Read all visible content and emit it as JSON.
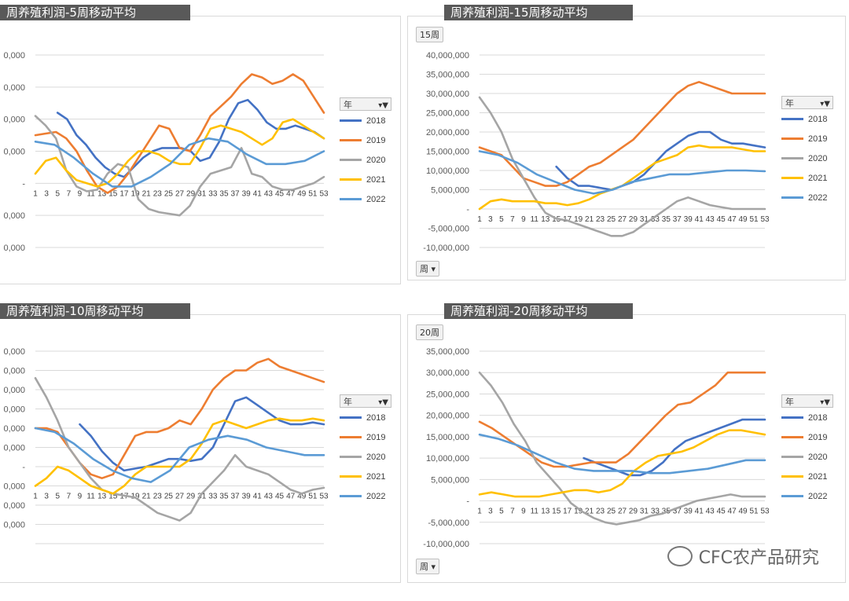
{
  "watermark": "CFC农产品研究",
  "legend_header": "年",
  "years": [
    "2018",
    "2019",
    "2020",
    "2021",
    "2022"
  ],
  "colors": {
    "2018": "#4472c4",
    "2019": "#ed7d31",
    "2020": "#a5a5a5",
    "2021": "#ffc000",
    "2022": "#5b9bd5"
  },
  "x_labels": [
    "1",
    "3",
    "5",
    "7",
    "9",
    "11",
    "13",
    "15",
    "17",
    "19",
    "21",
    "23",
    "25",
    "27",
    "29",
    "31",
    "33",
    "35",
    "37",
    "39",
    "41",
    "43",
    "45",
    "47",
    "49",
    "51",
    "53"
  ],
  "panels": [
    {
      "id": "p5",
      "title": "周养殖利润-5周移动平均",
      "badge": "",
      "field_button": "",
      "y_labels": [
        "0,000",
        "0,000",
        "0,000",
        "0,000",
        "-",
        "0,000",
        "0,000"
      ],
      "chart_data": {
        "type": "line",
        "ylim": [
          -20000000,
          40000000
        ],
        "yticks": [
          40000000,
          30000000,
          20000000,
          10000000,
          0,
          -10000000,
          -20000000
        ],
        "series": [
          {
            "name": "2018",
            "start": 5,
            "values": [
              22000000,
              20000000,
              15000000,
              12000000,
              8000000,
              5000000,
              3000000,
              2000000,
              5000000,
              8000000,
              10000000,
              11000000,
              11000000,
              11000000,
              10000000,
              7000000,
              8000000,
              13000000,
              20000000,
              25000000,
              26000000,
              23000000,
              19000000,
              17000000,
              17000000,
              18000000,
              17000000,
              16000000,
              14000000
            ]
          },
          {
            "name": "2019",
            "start": 1,
            "values": [
              15000000,
              15500000,
              16000000,
              14000000,
              10000000,
              4000000,
              -1000000,
              -3000000,
              -1000000,
              3000000,
              8000000,
              13000000,
              18000000,
              17000000,
              11000000,
              10000000,
              15000000,
              21000000,
              24000000,
              27000000,
              31000000,
              34000000,
              33000000,
              31000000,
              32000000,
              34000000,
              32000000,
              27000000,
              22000000
            ]
          },
          {
            "name": "2020",
            "start": 1,
            "values": [
              21000000,
              18000000,
              14000000,
              4000000,
              -1000000,
              -2500000,
              -2000000,
              3000000,
              6000000,
              5000000,
              -5000000,
              -8000000,
              -9000000,
              -9500000,
              -10000000,
              -7000000,
              -1000000,
              3000000,
              4000000,
              5000000,
              11000000,
              3000000,
              2000000,
              -1000000,
              -2000000,
              -2000000,
              -1000000,
              0,
              2000000
            ]
          },
          {
            "name": "2021",
            "start": 1,
            "values": [
              3000000,
              7000000,
              8000000,
              4000000,
              1000000,
              0,
              -1000000,
              0,
              3000000,
              7000000,
              10000000,
              10000000,
              9000000,
              7000000,
              6000000,
              6000000,
              11000000,
              17000000,
              18000000,
              17000000,
              16000000,
              14000000,
              12000000,
              14000000,
              19000000,
              20000000,
              18000000,
              16000000,
              14000000
            ]
          },
          {
            "name": "2022",
            "start": 1,
            "values": [
              13000000,
              12000000,
              8000000,
              3000000,
              -1000000,
              -1000000,
              2000000,
              6000000,
              12000000,
              14000000,
              13000000,
              9000000,
              6000000,
              6000000,
              7000000,
              10000000
            ]
          }
        ]
      }
    },
    {
      "id": "p15",
      "title": "周养殖利润-15周移动平均",
      "badge": "15周",
      "field_button": "周",
      "y_labels": [
        "40,000,000",
        "35,000,000",
        "30,000,000",
        "25,000,000",
        "20,000,000",
        "15,000,000",
        "10,000,000",
        "5,000,000",
        "-",
        "-5,000,000",
        "-10,000,000"
      ],
      "chart_data": {
        "type": "line",
        "ylim": [
          -10000000,
          40000000
        ],
        "yticks": [
          40000000,
          35000000,
          30000000,
          25000000,
          20000000,
          15000000,
          10000000,
          5000000,
          0,
          -5000000,
          -10000000
        ],
        "series": [
          {
            "name": "2018",
            "start": 15,
            "values": [
              11000000,
              8000000,
              6000000,
              6000000,
              5500000,
              5000000,
              6000000,
              7000000,
              9000000,
              12000000,
              15000000,
              17000000,
              19000000,
              20000000,
              20000000,
              18000000,
              17000000,
              17000000,
              16500000,
              16000000
            ]
          },
          {
            "name": "2019",
            "start": 1,
            "values": [
              16000000,
              15000000,
              14000000,
              11000000,
              8000000,
              7000000,
              6000000,
              6000000,
              7000000,
              9000000,
              11000000,
              12000000,
              14000000,
              16000000,
              18000000,
              21000000,
              24000000,
              27000000,
              30000000,
              32000000,
              33000000,
              32000000,
              31000000,
              30000000,
              30000000,
              30000000,
              30000000
            ]
          },
          {
            "name": "2020",
            "start": 1,
            "values": [
              29000000,
              25000000,
              20000000,
              13000000,
              8000000,
              3000000,
              -1000000,
              -2500000,
              -3000000,
              -4000000,
              -5000000,
              -6000000,
              -7000000,
              -7000000,
              -6000000,
              -4000000,
              -2000000,
              0,
              2000000,
              3000000,
              2000000,
              1000000,
              500000,
              0,
              0,
              0,
              0
            ]
          },
          {
            "name": "2021",
            "start": 1,
            "values": [
              0,
              2000000,
              2500000,
              2000000,
              2000000,
              2000000,
              1500000,
              1500000,
              1000000,
              1500000,
              2500000,
              4000000,
              5000000,
              6000000,
              8000000,
              10000000,
              12000000,
              13000000,
              14000000,
              16000000,
              16500000,
              16000000,
              16000000,
              16000000,
              15500000,
              15000000,
              15000000
            ]
          },
          {
            "name": "2022",
            "start": 1,
            "values": [
              15000000,
              14000000,
              12000000,
              9000000,
              7000000,
              5000000,
              4000000,
              5000000,
              7000000,
              8000000,
              9000000,
              9000000,
              9500000,
              10000000,
              10000000,
              9800000
            ]
          }
        ]
      }
    },
    {
      "id": "p10",
      "title": "周养殖利润-10周移动平均",
      "badge": "",
      "field_button": "",
      "y_labels": [
        "0,000",
        "0,000",
        "0,000",
        "0,000",
        "0,000",
        "0,000",
        "-",
        "0,000",
        "0,000",
        "0,000"
      ],
      "chart_data": {
        "type": "line",
        "ylim": [
          -15000000,
          35000000
        ],
        "yticks": [
          35000000,
          30000000,
          25000000,
          20000000,
          15000000,
          10000000,
          5000000,
          0,
          -5000000,
          -10000000,
          -15000000
        ],
        "series": [
          {
            "name": "2018",
            "start": 9,
            "values": [
              16000000,
              13000000,
              9000000,
              6000000,
              4000000,
              4500000,
              5000000,
              6000000,
              7000000,
              7000000,
              6500000,
              7000000,
              10000000,
              16000000,
              22000000,
              23000000,
              21000000,
              19000000,
              17000000,
              16000000,
              16000000,
              16500000,
              16000000
            ]
          },
          {
            "name": "2019",
            "start": 1,
            "values": [
              15000000,
              15000000,
              14000000,
              10000000,
              6000000,
              3000000,
              2000000,
              3000000,
              8000000,
              13000000,
              14000000,
              14000000,
              15000000,
              17000000,
              16000000,
              20000000,
              25000000,
              28000000,
              30000000,
              30000000,
              32000000,
              33000000,
              31000000,
              30000000,
              29000000,
              28000000,
              27000000
            ]
          },
          {
            "name": "2020",
            "start": 1,
            "values": [
              28000000,
              23000000,
              17000000,
              10000000,
              6000000,
              2000000,
              -1000000,
              -2000000,
              -2500000,
              -3000000,
              -5000000,
              -7000000,
              -8000000,
              -9000000,
              -7000000,
              -2000000,
              1000000,
              4000000,
              8000000,
              5000000,
              4000000,
              3000000,
              1000000,
              -1000000,
              -2000000,
              -1000000,
              -500000
            ]
          },
          {
            "name": "2021",
            "start": 1,
            "values": [
              0,
              2000000,
              5000000,
              4000000,
              2000000,
              0,
              -1000000,
              -2000000,
              0,
              3000000,
              5000000,
              5000000,
              5000000,
              5000000,
              7000000,
              11000000,
              16000000,
              17000000,
              16000000,
              15000000,
              16000000,
              17000000,
              17500000,
              17000000,
              17000000,
              17500000,
              17000000
            ]
          },
          {
            "name": "2022",
            "start": 1,
            "values": [
              15000000,
              14000000,
              11000000,
              7000000,
              4000000,
              2000000,
              1000000,
              4000000,
              10000000,
              12000000,
              13000000,
              12000000,
              10000000,
              9000000,
              8000000,
              8000000
            ]
          }
        ]
      }
    },
    {
      "id": "p20",
      "title": "周养殖利润-20周移动平均",
      "badge": "20周",
      "field_button": "周",
      "y_labels": [
        "35,000,000",
        "30,000,000",
        "25,000,000",
        "20,000,000",
        "15,000,000",
        "10,000,000",
        "5,000,000",
        "-",
        "-5,000,000",
        "-10,000,000"
      ],
      "chart_data": {
        "type": "line",
        "ylim": [
          -10000000,
          35000000
        ],
        "yticks": [
          35000000,
          30000000,
          25000000,
          20000000,
          15000000,
          10000000,
          5000000,
          0,
          -5000000,
          -10000000
        ],
        "series": [
          {
            "name": "2018",
            "start": 20,
            "values": [
              10000000,
              9000000,
              8000000,
              7000000,
              6000000,
              6000000,
              7000000,
              9000000,
              12000000,
              14000000,
              15000000,
              16000000,
              17000000,
              18000000,
              19000000,
              19000000,
              19000000
            ]
          },
          {
            "name": "2019",
            "start": 1,
            "values": [
              18500000,
              17000000,
              15000000,
              13000000,
              11000000,
              9000000,
              8000000,
              8000000,
              8500000,
              9000000,
              9000000,
              9000000,
              11000000,
              14000000,
              17000000,
              20000000,
              22500000,
              23000000,
              25000000,
              27000000,
              30000000,
              30000000,
              30000000,
              30000000
            ]
          },
          {
            "name": "2020",
            "start": 1,
            "values": [
              30000000,
              27000000,
              23000000,
              18000000,
              14000000,
              9000000,
              6000000,
              3000000,
              -500000,
              -2500000,
              -4000000,
              -5000000,
              -5500000,
              -5000000,
              -4500000,
              -3500000,
              -3000000,
              -2000000,
              -1000000,
              0,
              500000,
              1000000,
              1500000,
              1000000,
              1000000,
              1000000
            ]
          },
          {
            "name": "2021",
            "start": 1,
            "values": [
              1500000,
              2000000,
              1500000,
              1000000,
              1000000,
              1000000,
              1500000,
              2000000,
              2500000,
              2500000,
              2000000,
              2500000,
              4000000,
              7000000,
              9000000,
              10500000,
              11000000,
              11500000,
              12500000,
              14000000,
              15500000,
              16500000,
              16500000,
              16000000,
              15500000
            ]
          },
          {
            "name": "2022",
            "start": 1,
            "values": [
              15500000,
              14500000,
              13000000,
              11000000,
              9000000,
              7500000,
              7000000,
              7000000,
              7000000,
              6500000,
              6500000,
              7000000,
              7500000,
              8500000,
              9500000,
              9500000
            ]
          }
        ]
      }
    }
  ]
}
